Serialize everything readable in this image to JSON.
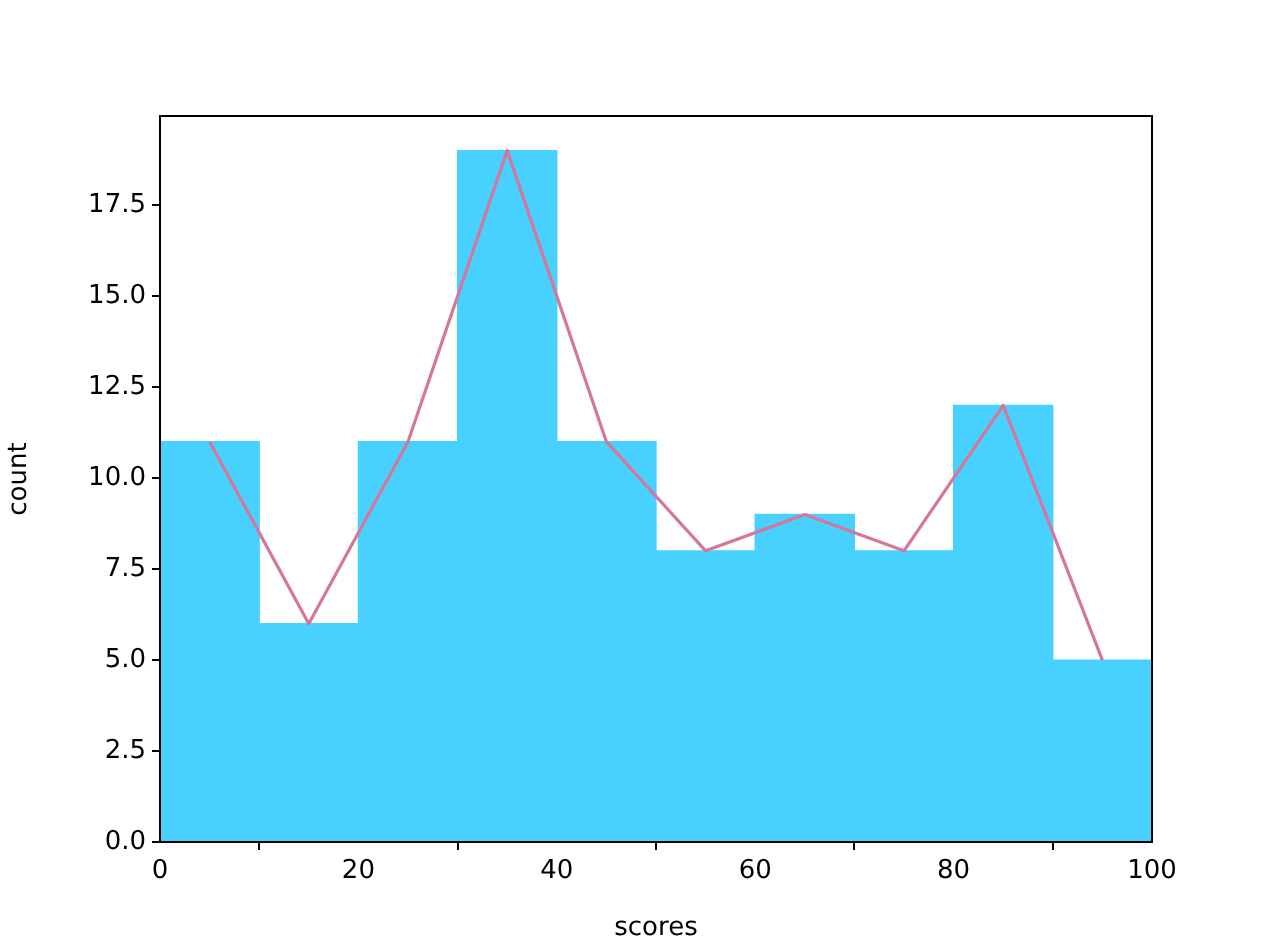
{
  "chart_data": {
    "type": "histogram",
    "xlabel": "scores",
    "ylabel": "count",
    "bins": [
      0,
      10,
      20,
      30,
      40,
      50,
      60,
      70,
      80,
      90,
      100
    ],
    "series": [
      {
        "color": "#48d1ff",
        "values": [
          11,
          6,
          11,
          19,
          11,
          8,
          9,
          8,
          12,
          5
        ]
      },
      {
        "type": "line",
        "color": "#d4779a",
        "x": [
          5,
          15,
          25,
          35,
          45,
          55,
          65,
          75,
          85,
          95
        ],
        "values": [
          11,
          6,
          11,
          19,
          11,
          8,
          9,
          8,
          12,
          5
        ]
      }
    ],
    "xlim": [
      0,
      100
    ],
    "xticks": [
      0,
      20,
      40,
      60,
      80,
      100
    ],
    "ylim": [
      0,
      19.95
    ],
    "yticks": [
      {
        "value": 0,
        "label": "0.0"
      },
      {
        "value": 2.5,
        "label": "2.5"
      },
      {
        "value": 5,
        "label": "5.0"
      },
      {
        "value": 7.5,
        "label": "7.5"
      },
      {
        "value": 10,
        "label": "10.0"
      },
      {
        "value": 12.5,
        "label": "12.5"
      },
      {
        "value": 15,
        "label": "15.0"
      },
      {
        "value": 17.5,
        "label": "17.5"
      }
    ],
    "grid": false,
    "legend": false,
    "marker": "none"
  }
}
